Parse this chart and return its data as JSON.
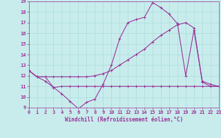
{
  "xlabel": "Windchill (Refroidissement éolien,°C)",
  "ylabel": "",
  "background_color": "#c8ecec",
  "grid_color": "#aadddd",
  "line_color": "#993399",
  "xlim": [
    0,
    23
  ],
  "ylim": [
    9,
    19
  ],
  "xticks": [
    0,
    1,
    2,
    3,
    4,
    5,
    6,
    7,
    8,
    9,
    10,
    11,
    12,
    13,
    14,
    15,
    16,
    17,
    18,
    19,
    20,
    21,
    22,
    23
  ],
  "yticks": [
    9,
    10,
    11,
    12,
    13,
    14,
    15,
    16,
    17,
    18,
    19
  ],
  "series1_x": [
    0,
    1,
    2,
    3,
    4,
    5,
    6,
    7,
    8,
    9,
    10,
    11,
    12,
    13,
    14,
    15,
    16,
    17,
    18,
    19,
    20,
    21,
    22,
    23
  ],
  "series1_y": [
    12.5,
    11.9,
    11.5,
    10.9,
    10.3,
    9.6,
    8.9,
    9.5,
    9.8,
    11.2,
    13.0,
    15.5,
    17.0,
    17.3,
    17.5,
    18.9,
    18.4,
    17.8,
    16.9,
    12.0,
    16.3,
    11.4,
    11.0,
    11.0
  ],
  "series2_x": [
    0,
    1,
    2,
    3,
    4,
    5,
    6,
    7,
    8,
    9,
    10,
    11,
    12,
    13,
    14,
    15,
    16,
    17,
    18,
    19,
    20,
    21,
    22,
    23
  ],
  "series2_y": [
    12.5,
    11.9,
    11.9,
    10.9,
    11.0,
    11.0,
    11.0,
    11.0,
    11.0,
    11.0,
    11.0,
    11.0,
    11.0,
    11.0,
    11.0,
    11.0,
    11.0,
    11.0,
    11.0,
    11.0,
    11.0,
    11.0,
    11.0,
    11.0
  ],
  "series3_x": [
    0,
    1,
    2,
    3,
    4,
    5,
    6,
    7,
    8,
    9,
    10,
    11,
    12,
    13,
    14,
    15,
    16,
    17,
    18,
    19,
    20,
    21,
    22,
    23
  ],
  "series3_y": [
    12.5,
    11.9,
    11.9,
    11.9,
    11.9,
    11.9,
    11.9,
    11.9,
    12.0,
    12.2,
    12.5,
    13.0,
    13.5,
    14.0,
    14.5,
    15.2,
    15.8,
    16.3,
    16.8,
    17.0,
    16.5,
    11.5,
    11.2,
    11.0
  ],
  "tick_fontsize": 5,
  "xlabel_fontsize": 5.5
}
